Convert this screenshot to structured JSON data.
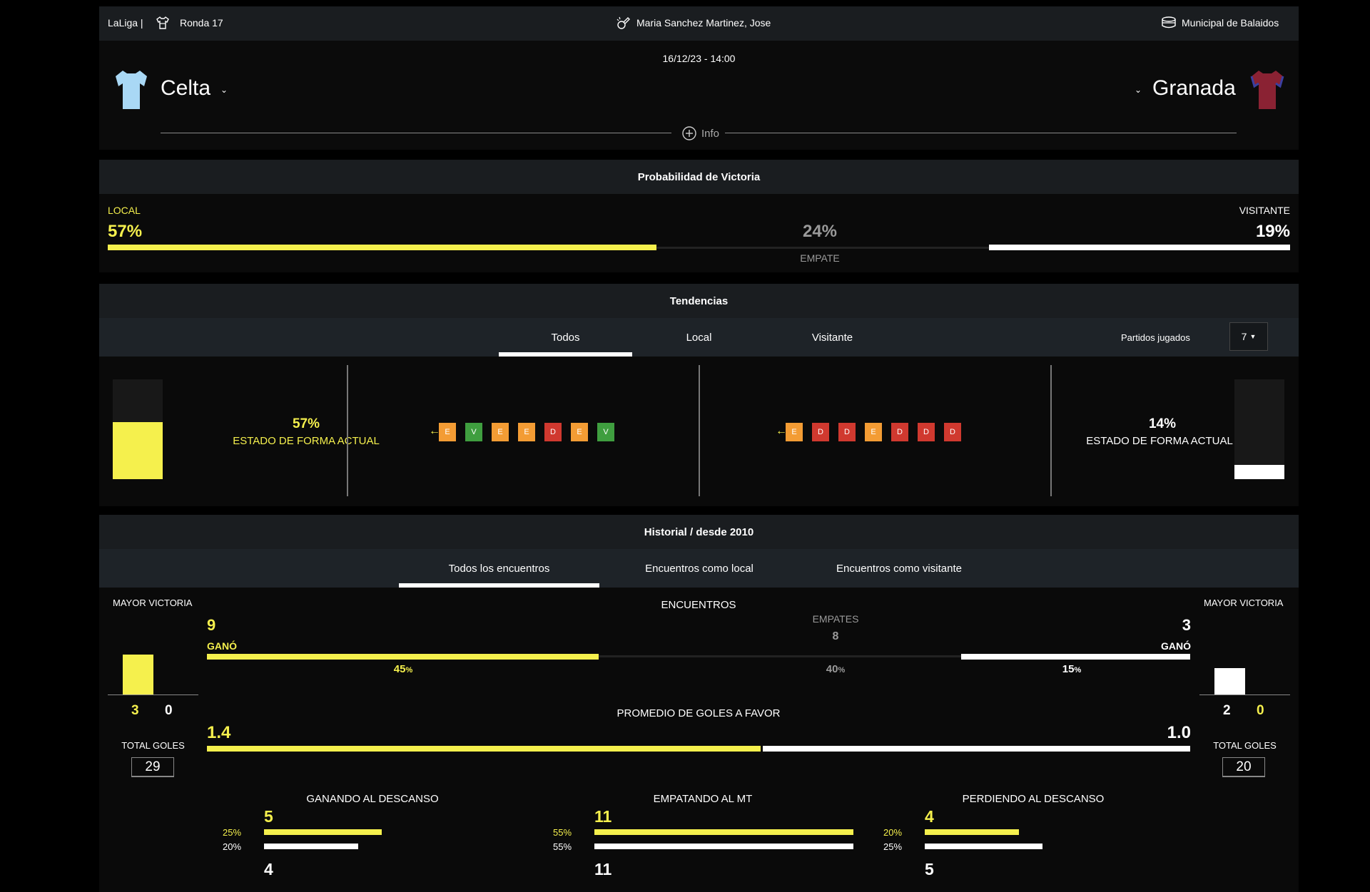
{
  "header": {
    "league": "LaLiga |",
    "round": "Ronda 17",
    "referee": "Maria Sanchez Martinez, Jose",
    "stadium": "Municipal de Balaidos",
    "datetime": "16/12/23 - 14:00",
    "home_team": "Celta",
    "away_team": "Granada",
    "info_label": "Info",
    "home_color": "#a9d8f5",
    "away_color": "#8a2233"
  },
  "probability": {
    "title": "Probabilidad de Victoria",
    "home_label": "LOCAL",
    "home_pct": "57%",
    "draw_pct": "24%",
    "draw_label": "EMPATE",
    "away_label": "VISITANTE",
    "away_pct": "19%",
    "home_value": 0.57,
    "draw_value": 0.24,
    "away_value": 0.19
  },
  "trends": {
    "title": "Tendencias",
    "tabs": [
      "Todos",
      "Local",
      "Visitante"
    ],
    "played_label": "Partidos jugados",
    "played_value": "7",
    "home_form_pct": "57%",
    "home_form_label": "ESTADO DE FORMA ACTUAL",
    "away_form_pct": "14%",
    "away_form_label": "ESTADO DE FORMA ACTUAL",
    "home_form_value": 0.57,
    "away_form_value": 0.14,
    "home_results": [
      "E",
      "V",
      "E",
      "E",
      "D",
      "E",
      "V"
    ],
    "away_results": [
      "E",
      "D",
      "D",
      "E",
      "D",
      "D",
      "D"
    ]
  },
  "history": {
    "title": "Historial / desde 2010",
    "tabs": [
      "Todos los encuentros",
      "Encuentros como local",
      "Encuentros como visitante"
    ],
    "biggest_win_label": "MAYOR VICTORIA",
    "home_biggest": {
      "home": "3",
      "away": "0"
    },
    "away_biggest": {
      "home": "2",
      "away": "0"
    },
    "total_goals_label": "TOTAL GOLES",
    "home_total_goals": "29",
    "away_total_goals": "20",
    "encounters_label": "ENCUENTROS",
    "home_wins": "9",
    "home_won_label": "GANÓ",
    "home_win_pct": "45",
    "draws_label": "EMPATES",
    "draws": "8",
    "draw_pct": "40",
    "away_wins": "3",
    "away_won_label": "GANÓ",
    "away_win_pct": "15",
    "pct_sign": "%",
    "avg_goals_label": "PROMEDIO DE GOLES A FAVOR",
    "home_avg": "1.4",
    "away_avg": "1.0",
    "halftime": [
      {
        "label": "GANANDO AL DESCANSO",
        "home_count": "5",
        "home_pct": "25%",
        "away_pct": "20%",
        "away_count": "4",
        "home_value": 0.25,
        "away_value": 0.2
      },
      {
        "label": "EMPATANDO AL MT",
        "home_count": "11",
        "home_pct": "55%",
        "away_pct": "55%",
        "away_count": "11",
        "home_value": 0.55,
        "away_value": 0.55
      },
      {
        "label": "PERDIENDO AL DESCANSO",
        "home_count": "4",
        "home_pct": "20%",
        "away_pct": "25%",
        "away_count": "5",
        "home_value": 0.2,
        "away_value": 0.25
      }
    ]
  }
}
